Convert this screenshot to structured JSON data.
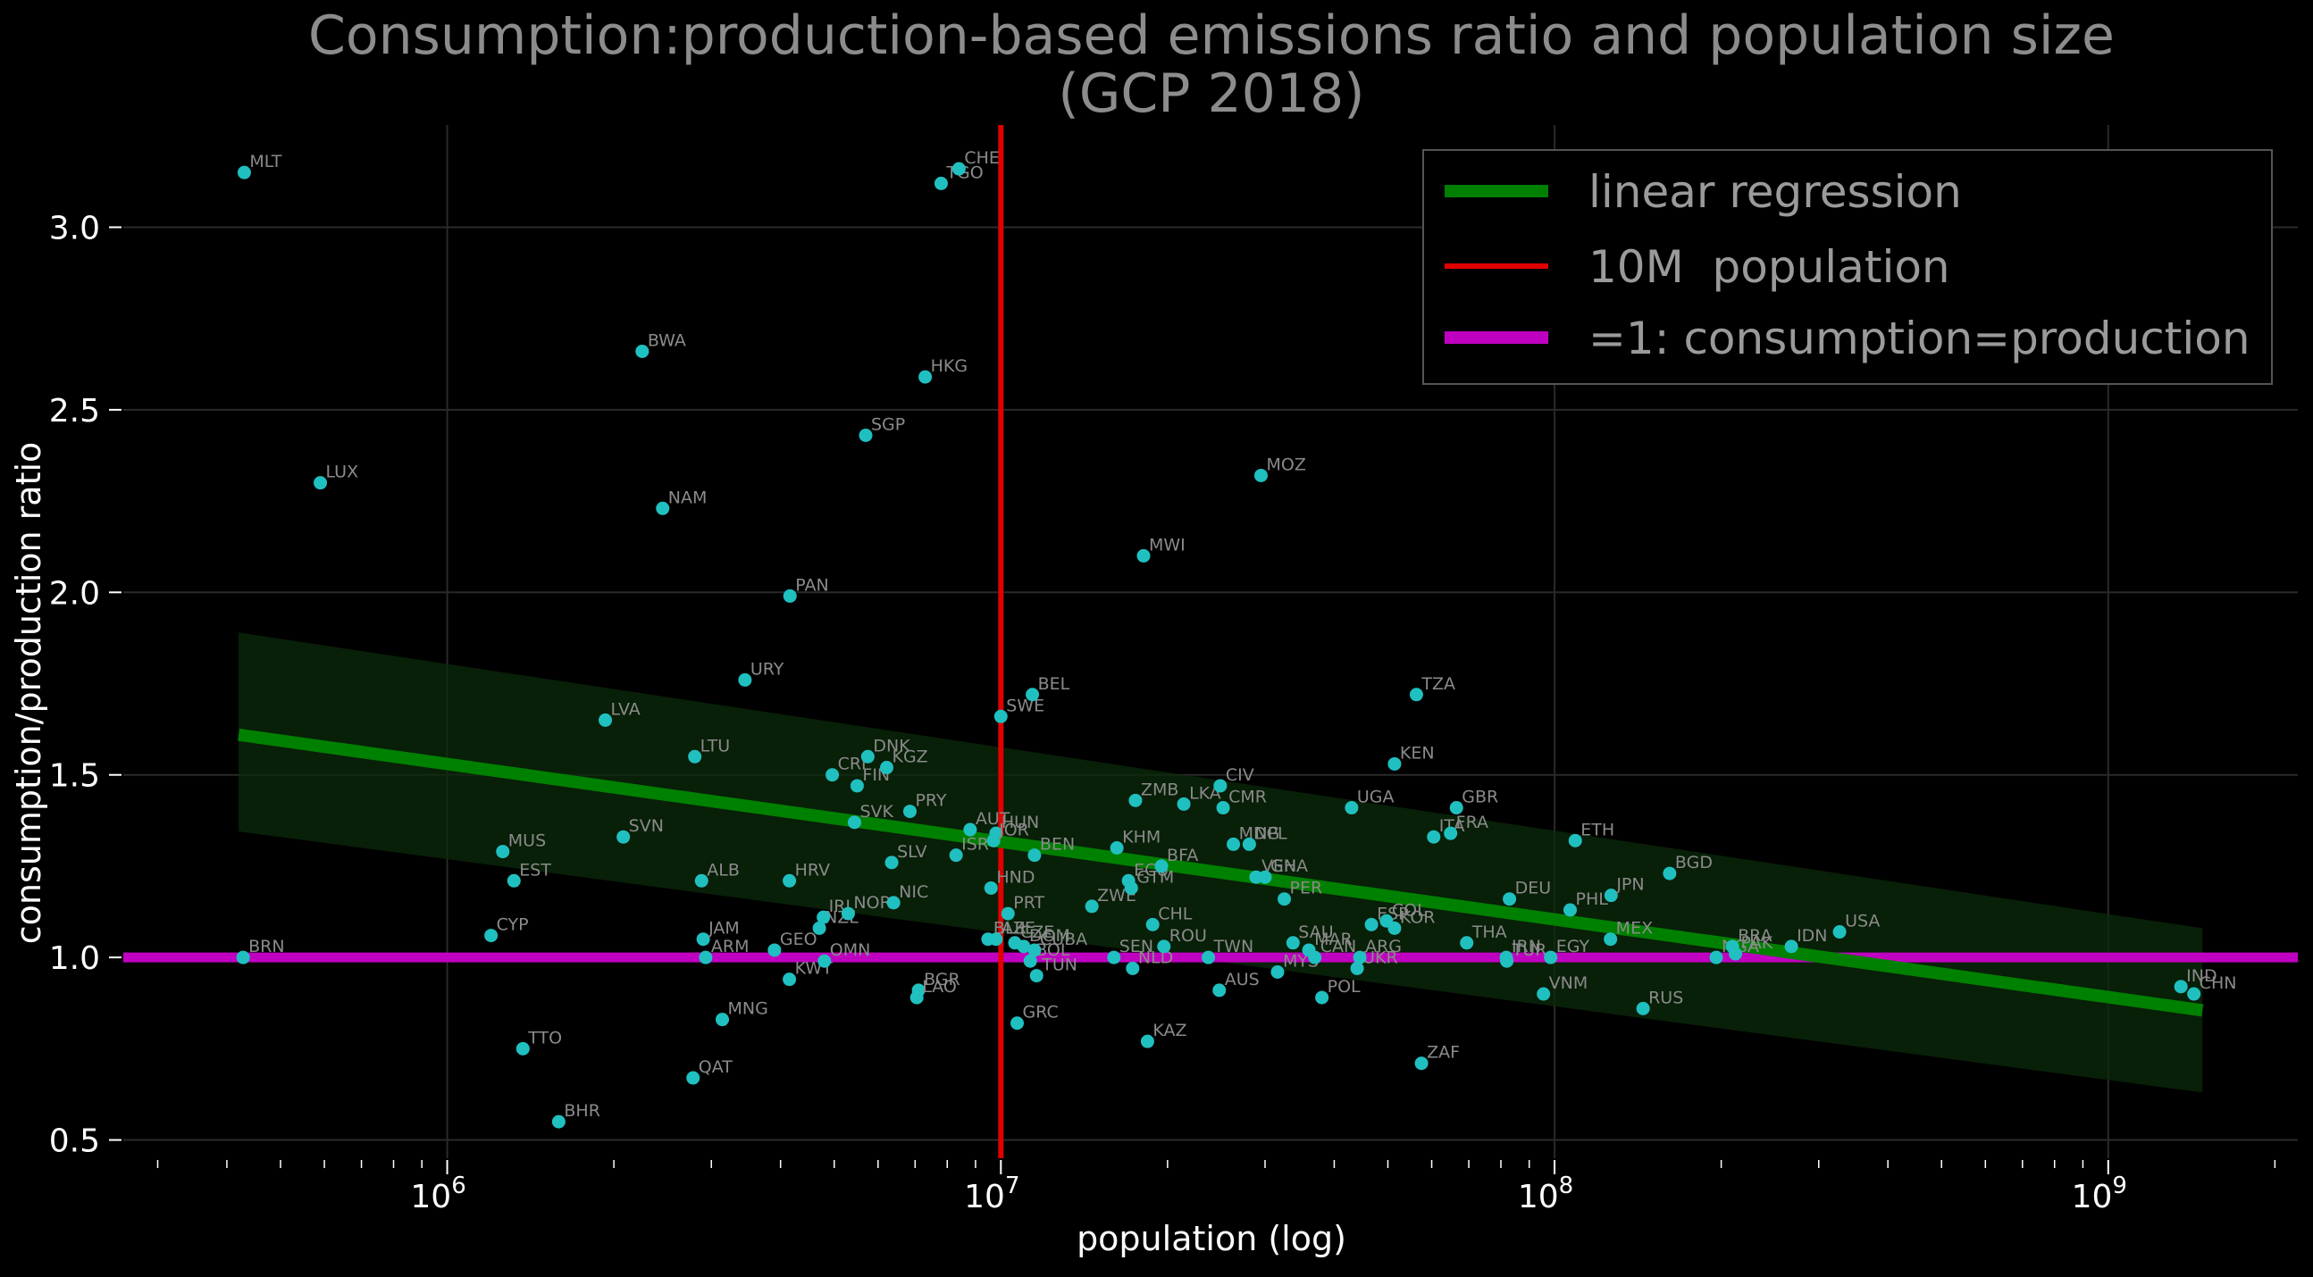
{
  "chart_data": {
    "type": "scatter",
    "title": [
      "Consumption:production-based emissions ratio and population size",
      "(GCP 2018)"
    ],
    "xlabel": "population (log)",
    "ylabel": "consumption/production ratio",
    "x_scale": "log",
    "xlim": [
      260000,
      2200000000
    ],
    "ylim": [
      0.45,
      3.28
    ],
    "x_ticks": [
      {
        "value": 1000000,
        "base": "10",
        "exp": "6"
      },
      {
        "value": 10000000,
        "base": "10",
        "exp": "7"
      },
      {
        "value": 100000000,
        "base": "10",
        "exp": "8"
      },
      {
        "value": 1000000000,
        "base": "10",
        "exp": "9"
      }
    ],
    "y_ticks": [
      {
        "value": 0.5,
        "label": "0.5"
      },
      {
        "value": 1.0,
        "label": "1.0"
      },
      {
        "value": 1.5,
        "label": "1.5"
      },
      {
        "value": 2.0,
        "label": "2.0"
      },
      {
        "value": 2.5,
        "label": "2.5"
      },
      {
        "value": 3.0,
        "label": "3.0"
      }
    ],
    "grid": true,
    "legend_position": "top-right",
    "legend": [
      {
        "label": "linear regression",
        "color": "#008000"
      },
      {
        "label": "10M  population",
        "color": "#e00000"
      },
      {
        "label": "=1: consumption=production",
        "color": "#c000c0"
      }
    ],
    "regression": {
      "x": [
        420000,
        1480000000
      ],
      "y": [
        1.61,
        0.855
      ],
      "ci_upper": [
        1.89,
        1.08
      ],
      "ci_lower": [
        1.345,
        0.63
      ],
      "color": "#008000"
    },
    "reference_lines": {
      "vertical_x": 10000000,
      "horizontal_y": 1.0
    },
    "point_color": "#20c0c0",
    "points": [
      {
        "label": "MLT",
        "x": 430000,
        "y": 3.15
      },
      {
        "label": "BRN",
        "x": 428000,
        "y": 1.0
      },
      {
        "label": "LUX",
        "x": 590000,
        "y": 2.3
      },
      {
        "label": "CYP",
        "x": 1200000,
        "y": 1.06
      },
      {
        "label": "MUS",
        "x": 1260000,
        "y": 1.29
      },
      {
        "label": "EST",
        "x": 1320000,
        "y": 1.21
      },
      {
        "label": "TTO",
        "x": 1370000,
        "y": 0.75
      },
      {
        "label": "BHR",
        "x": 1590000,
        "y": 0.55
      },
      {
        "label": "LVA",
        "x": 1930000,
        "y": 1.65
      },
      {
        "label": "SVN",
        "x": 2080000,
        "y": 1.33
      },
      {
        "label": "BWA",
        "x": 2250000,
        "y": 2.66
      },
      {
        "label": "NAM",
        "x": 2450000,
        "y": 2.23
      },
      {
        "label": "LTU",
        "x": 2800000,
        "y": 1.55
      },
      {
        "label": "QAT",
        "x": 2780000,
        "y": 0.67
      },
      {
        "label": "ALB",
        "x": 2880000,
        "y": 1.21
      },
      {
        "label": "JAM",
        "x": 2900000,
        "y": 1.05
      },
      {
        "label": "ARM",
        "x": 2930000,
        "y": 1.0
      },
      {
        "label": "MNG",
        "x": 3140000,
        "y": 0.83
      },
      {
        "label": "URY",
        "x": 3450000,
        "y": 1.76
      },
      {
        "label": "GEO",
        "x": 3900000,
        "y": 1.02
      },
      {
        "label": "KWT",
        "x": 4150000,
        "y": 0.94
      },
      {
        "label": "HRV",
        "x": 4150000,
        "y": 1.21
      },
      {
        "label": "PAN",
        "x": 4160000,
        "y": 1.99
      },
      {
        "label": "NZL",
        "x": 4700000,
        "y": 1.08
      },
      {
        "label": "IRL",
        "x": 4780000,
        "y": 1.11
      },
      {
        "label": "OMN",
        "x": 4800000,
        "y": 0.99
      },
      {
        "label": "CRI",
        "x": 4960000,
        "y": 1.5
      },
      {
        "label": "NOR",
        "x": 5300000,
        "y": 1.12
      },
      {
        "label": "SVK",
        "x": 5440000,
        "y": 1.37
      },
      {
        "label": "FIN",
        "x": 5500000,
        "y": 1.47
      },
      {
        "label": "DNK",
        "x": 5750000,
        "y": 1.55
      },
      {
        "label": "SGP",
        "x": 5700000,
        "y": 2.43
      },
      {
        "label": "KGZ",
        "x": 6220000,
        "y": 1.52
      },
      {
        "label": "SLV",
        "x": 6350000,
        "y": 1.26
      },
      {
        "label": "NIC",
        "x": 6400000,
        "y": 1.15
      },
      {
        "label": "PRY",
        "x": 6850000,
        "y": 1.4
      },
      {
        "label": "BGR",
        "x": 7100000,
        "y": 0.91
      },
      {
        "label": "LAO",
        "x": 7050000,
        "y": 0.89
      },
      {
        "label": "HKG",
        "x": 7300000,
        "y": 2.59
      },
      {
        "label": "TGO",
        "x": 7800000,
        "y": 3.12
      },
      {
        "label": "CHE",
        "x": 8400000,
        "y": 3.16
      },
      {
        "label": "ISR",
        "x": 8300000,
        "y": 1.28
      },
      {
        "label": "AUT",
        "x": 8800000,
        "y": 1.35
      },
      {
        "label": "HUN",
        "x": 9800000,
        "y": 1.34
      },
      {
        "label": "HND",
        "x": 9600000,
        "y": 1.19
      },
      {
        "label": "BLR",
        "x": 9480000,
        "y": 1.05
      },
      {
        "label": "JOR",
        "x": 9700000,
        "y": 1.32
      },
      {
        "label": "AZE",
        "x": 9800000,
        "y": 1.05
      },
      {
        "label": "SWE",
        "x": 10000000,
        "y": 1.66
      },
      {
        "label": "PRT",
        "x": 10300000,
        "y": 1.12
      },
      {
        "label": "GRC",
        "x": 10700000,
        "y": 0.82
      },
      {
        "label": "CZE",
        "x": 10600000,
        "y": 1.04
      },
      {
        "label": "DOM",
        "x": 11000000,
        "y": 1.03
      },
      {
        "label": "BOL",
        "x": 11300000,
        "y": 0.99
      },
      {
        "label": "BEL",
        "x": 11400000,
        "y": 1.72
      },
      {
        "label": "BEN",
        "x": 11500000,
        "y": 1.28
      },
      {
        "label": "TUN",
        "x": 11600000,
        "y": 0.95
      },
      {
        "label": "CUBA",
        "x": 11500000,
        "y": 1.02
      },
      {
        "label": "ZWE",
        "x": 14600000,
        "y": 1.14
      },
      {
        "label": "KHM",
        "x": 16200000,
        "y": 1.3
      },
      {
        "label": "SEN",
        "x": 16000000,
        "y": 1.0
      },
      {
        "label": "ECU",
        "x": 17000000,
        "y": 1.21
      },
      {
        "label": "GTM",
        "x": 17200000,
        "y": 1.19
      },
      {
        "label": "NLD",
        "x": 17300000,
        "y": 0.97
      },
      {
        "label": "ZMB",
        "x": 17500000,
        "y": 1.43
      },
      {
        "label": "MWI",
        "x": 18100000,
        "y": 2.1
      },
      {
        "label": "KAZ",
        "x": 18400000,
        "y": 0.77
      },
      {
        "label": "CHL",
        "x": 18800000,
        "y": 1.09
      },
      {
        "label": "BFA",
        "x": 19500000,
        "y": 1.25
      },
      {
        "label": "ROU",
        "x": 19700000,
        "y": 1.03
      },
      {
        "label": "LKA",
        "x": 21400000,
        "y": 1.42
      },
      {
        "label": "TWN",
        "x": 23700000,
        "y": 1.0
      },
      {
        "label": "CIV",
        "x": 24900000,
        "y": 1.47
      },
      {
        "label": "CMR",
        "x": 25200000,
        "y": 1.41
      },
      {
        "label": "AUS",
        "x": 24800000,
        "y": 0.91
      },
      {
        "label": "MDG",
        "x": 26300000,
        "y": 1.31
      },
      {
        "label": "NPL",
        "x": 28100000,
        "y": 1.31
      },
      {
        "label": "VEN",
        "x": 28900000,
        "y": 1.22
      },
      {
        "label": "MOZ",
        "x": 29500000,
        "y": 2.32
      },
      {
        "label": "GHA",
        "x": 30000000,
        "y": 1.22
      },
      {
        "label": "MYS",
        "x": 31600000,
        "y": 0.96
      },
      {
        "label": "PER",
        "x": 32500000,
        "y": 1.16
      },
      {
        "label": "SAU",
        "x": 33700000,
        "y": 1.04
      },
      {
        "label": "CAN",
        "x": 36900000,
        "y": 1.0
      },
      {
        "label": "MAR",
        "x": 36000000,
        "y": 1.02
      },
      {
        "label": "POL",
        "x": 38000000,
        "y": 0.89
      },
      {
        "label": "UGA",
        "x": 43000000,
        "y": 1.41
      },
      {
        "label": "UKR",
        "x": 44000000,
        "y": 0.97
      },
      {
        "label": "ARG",
        "x": 44500000,
        "y": 1.0
      },
      {
        "label": "ESP",
        "x": 46700000,
        "y": 1.09
      },
      {
        "label": "COL",
        "x": 49700000,
        "y": 1.1
      },
      {
        "label": "KOR",
        "x": 51400000,
        "y": 1.08
      },
      {
        "label": "KEN",
        "x": 51400000,
        "y": 1.53
      },
      {
        "label": "TZA",
        "x": 56300000,
        "y": 1.72
      },
      {
        "label": "ZAF",
        "x": 57500000,
        "y": 0.71
      },
      {
        "label": "ITA",
        "x": 60500000,
        "y": 1.33
      },
      {
        "label": "FRA",
        "x": 64900000,
        "y": 1.34
      },
      {
        "label": "GBR",
        "x": 66500000,
        "y": 1.41
      },
      {
        "label": "THA",
        "x": 69400000,
        "y": 1.04
      },
      {
        "label": "IRN",
        "x": 81800000,
        "y": 1.0
      },
      {
        "label": "TUR",
        "x": 82000000,
        "y": 0.99
      },
      {
        "label": "DEU",
        "x": 82900000,
        "y": 1.16
      },
      {
        "label": "VNM",
        "x": 95500000,
        "y": 0.9
      },
      {
        "label": "EGY",
        "x": 98400000,
        "y": 1.0
      },
      {
        "label": "ETH",
        "x": 109000000,
        "y": 1.32
      },
      {
        "label": "PHL",
        "x": 106700000,
        "y": 1.13
      },
      {
        "label": "MEX",
        "x": 126200000,
        "y": 1.05
      },
      {
        "label": "JPN",
        "x": 126500000,
        "y": 1.17
      },
      {
        "label": "RUS",
        "x": 144500000,
        "y": 0.86
      },
      {
        "label": "BGD",
        "x": 161400000,
        "y": 1.23
      },
      {
        "label": "NGA",
        "x": 195900000,
        "y": 1.0
      },
      {
        "label": "BRA",
        "x": 209500000,
        "y": 1.03
      },
      {
        "label": "PAK",
        "x": 212200000,
        "y": 1.01
      },
      {
        "label": "IDN",
        "x": 267700000,
        "y": 1.03
      },
      {
        "label": "USA",
        "x": 327200000,
        "y": 1.07
      },
      {
        "label": "IND",
        "x": 1353000000,
        "y": 0.92
      },
      {
        "label": "CHN",
        "x": 1428000000,
        "y": 0.9
      }
    ]
  }
}
